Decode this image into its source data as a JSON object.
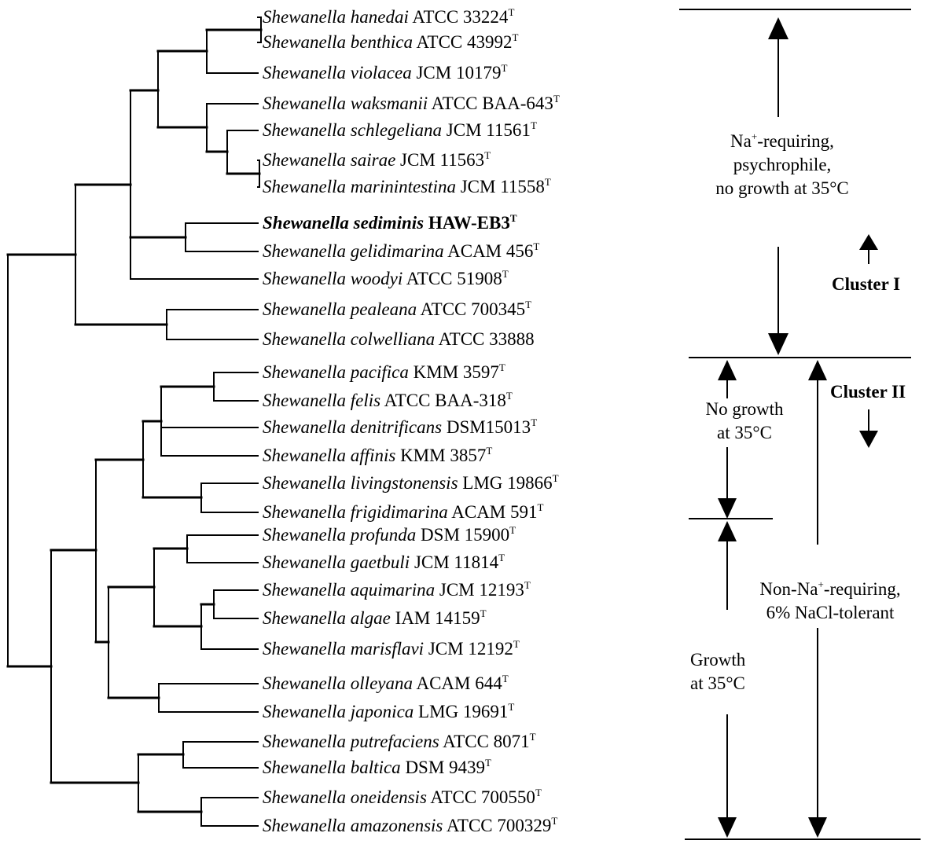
{
  "taxa": [
    {
      "genus": "Shewanella",
      "species": "hanedai",
      "strain": "ATCC 33224",
      "sup": "T"
    },
    {
      "genus": "Shewanella",
      "species": "benthica",
      "strain": "ATCC 43992",
      "sup": "T"
    },
    {
      "genus": "Shewanella",
      "species": "violacea",
      "strain": "JCM 10179",
      "sup": "T"
    },
    {
      "genus": "Shewanella",
      "species": "waksmanii",
      "strain": "ATCC BAA-643",
      "sup": "T"
    },
    {
      "genus": "Shewanella",
      "species": "schlegeliana",
      "strain": "JCM 11561",
      "sup": "T"
    },
    {
      "genus": "Shewanella",
      "species": "sairae",
      "strain": "JCM 11563",
      "sup": "T"
    },
    {
      "genus": "Shewanella",
      "species": "marinintestina",
      "strain": "JCM 11558",
      "sup": "T"
    },
    {
      "genus": "Shewanella",
      "species": "sediminis",
      "strain": "HAW-EB3",
      "sup": "T",
      "bold": true
    },
    {
      "genus": "Shewanella",
      "species": "gelidimarina",
      "strain": "ACAM 456",
      "sup": "T"
    },
    {
      "genus": "Shewanella",
      "species": "woodyi",
      "strain": "ATCC 51908",
      "sup": "T"
    },
    {
      "genus": "Shewanella",
      "species": "pealeana",
      "strain": "ATCC 700345",
      "sup": "T"
    },
    {
      "genus": "Shewanella",
      "species": "colwelliana",
      "strain": "ATCC 33888",
      "sup": ""
    },
    {
      "genus": "Shewanella",
      "species": "pacifica",
      "strain": "KMM 3597",
      "sup": "T"
    },
    {
      "genus": "Shewanella",
      "species": "felis",
      "strain": "ATCC BAA-318",
      "sup": "T"
    },
    {
      "genus": "Shewanella",
      "species": "denitrificans",
      "strain": "DSM15013",
      "sup": "T"
    },
    {
      "genus": "Shewanella",
      "species": "affinis",
      "strain": "KMM 3857",
      "sup": "T"
    },
    {
      "genus": "Shewanella",
      "species": "livingstonensis",
      "strain": "LMG 19866",
      "sup": "T"
    },
    {
      "genus": "Shewanella",
      "species": "frigidimarina",
      "strain": "ACAM 591",
      "sup": "T"
    },
    {
      "genus": "Shewanella",
      "species": "profunda",
      "strain": "DSM 15900",
      "sup": "T"
    },
    {
      "genus": "Shewanella",
      "species": "gaetbuli",
      "strain": "JCM 11814",
      "sup": "T"
    },
    {
      "genus": "Shewanella",
      "species": "aquimarina",
      "strain": "JCM 12193",
      "sup": "T"
    },
    {
      "genus": "Shewanella",
      "species": "algae",
      "strain": "IAM 14159",
      "sup": "T"
    },
    {
      "genus": "Shewanella",
      "species": "marisflavi",
      "strain": "JCM 12192",
      "sup": "T"
    },
    {
      "genus": "Shewanella",
      "species": "olleyana",
      "strain": "ACAM 644",
      "sup": "T"
    },
    {
      "genus": "Shewanella",
      "species": "japonica",
      "strain": "LMG 19691",
      "sup": "T"
    },
    {
      "genus": "Shewanella",
      "species": "putrefaciens",
      "strain": "ATCC 8071",
      "sup": "T"
    },
    {
      "genus": "Shewanella",
      "species": "baltica",
      "strain": "DSM 9439",
      "sup": "T"
    },
    {
      "genus": "Shewanella",
      "species": "oneidensis",
      "strain": "ATCC 700550",
      "sup": "T"
    },
    {
      "genus": "Shewanella",
      "species": "amazonensis",
      "strain": "ATCC 700329",
      "sup": "T"
    }
  ],
  "annotations": {
    "group1": {
      "line1_prefix": "Na",
      "line1_sup": "+",
      "line1_suffix": "-requiring,",
      "line2": "psychrophile,",
      "line3": "no growth at 35°C"
    },
    "cluster1": "Cluster I",
    "cluster2": "Cluster II",
    "no_growth": {
      "line1": "No growth",
      "line2": "at 35°C"
    },
    "non_na": {
      "line1_prefix": "Non-Na",
      "line1_sup": "+",
      "line1_suffix": "-requiring,",
      "line2": "6% NaCl-tolerant"
    },
    "growth": {
      "line1": "Growth",
      "line2": "at 35°C"
    }
  }
}
